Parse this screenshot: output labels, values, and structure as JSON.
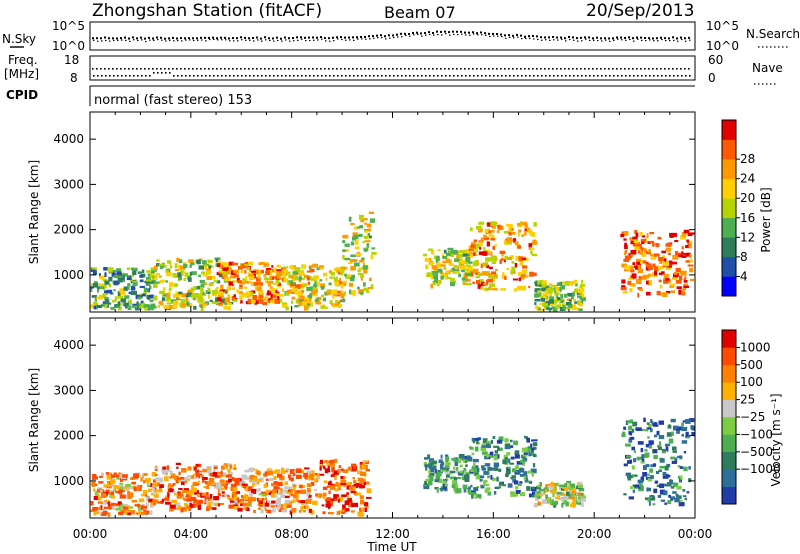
{
  "header": {
    "station": "Zhongshan Station (fitACF)",
    "beam": "Beam 07",
    "date": "20/Sep/2013"
  },
  "top_panels": {
    "nsky_label": "N.Sky",
    "nsky_ticks": [
      "10^5",
      "10^0"
    ],
    "nsearch_label": "N.Search",
    "nsearch_ticks": [
      "10^5",
      "10^0"
    ],
    "freq_label_1": "Freq.",
    "freq_label_2": "[MHz]",
    "freq_ticks": [
      "18",
      "8"
    ],
    "nave_label": "Nave",
    "nave_ticks": [
      "60",
      "0"
    ],
    "cpid_label": "CPID",
    "cpid_text": "normal (fast stereo) 153"
  },
  "time_axis": {
    "ticks": [
      "00:00",
      "04:00",
      "08:00",
      "12:00",
      "16:00",
      "20:00",
      "00:00"
    ],
    "label": "Time UT"
  },
  "chart_data": [
    {
      "type": "heatmap",
      "name": "power",
      "ylabel": "Slant Range [km]",
      "yticks": [
        "1000",
        "2000",
        "3000",
        "4000"
      ],
      "ylim": [
        180,
        4600
      ],
      "xlim_hours": [
        0,
        24
      ],
      "colorbar": {
        "label": "Power [dB]",
        "ticks": [
          "4",
          "8",
          "12",
          "16",
          "20",
          "24",
          "28"
        ],
        "colors": [
          "#0000ff",
          "#1f4fa8",
          "#2e7d5b",
          "#4caf50",
          "#b6d400",
          "#ffd000",
          "#ff9900",
          "#ff5a00",
          "#e00000"
        ]
      },
      "blobs": [
        {
          "t0": 0.0,
          "t1": 2.5,
          "r0": 250,
          "r1": 1200,
          "level": 0.35
        },
        {
          "t0": 2.5,
          "t1": 5.5,
          "r0": 300,
          "r1": 1400,
          "level": 0.5
        },
        {
          "t0": 5.0,
          "t1": 7.5,
          "r0": 400,
          "r1": 1300,
          "level": 0.75
        },
        {
          "t0": 7.5,
          "t1": 10.0,
          "r0": 300,
          "r1": 1250,
          "level": 0.6
        },
        {
          "t0": 10.0,
          "t1": 11.2,
          "r0": 600,
          "r1": 2400,
          "level": 0.55
        },
        {
          "t0": 13.2,
          "t1": 15.0,
          "r0": 800,
          "r1": 1600,
          "level": 0.55
        },
        {
          "t0": 15.0,
          "t1": 17.6,
          "r0": 700,
          "r1": 2200,
          "level": 0.7
        },
        {
          "t0": 17.6,
          "t1": 19.5,
          "r0": 250,
          "r1": 900,
          "level": 0.45
        },
        {
          "t0": 21.0,
          "t1": 24.0,
          "r0": 600,
          "r1": 2000,
          "level": 0.8
        }
      ]
    },
    {
      "type": "heatmap",
      "name": "velocity",
      "ylabel": "Slant Range [km]",
      "yticks": [
        "1000",
        "2000",
        "3000",
        "4000"
      ],
      "ylim": [
        180,
        4600
      ],
      "xlim_hours": [
        0,
        24
      ],
      "colorbar": {
        "label": "Velocity [m s⁻¹]",
        "ticks": [
          "1000",
          "500",
          "100",
          "25",
          "−25",
          "−100",
          "−500",
          "−1000"
        ],
        "colors": [
          "#1f3ca8",
          "#2e6f9a",
          "#2e7d5b",
          "#4caf50",
          "#7ccc44",
          "#c8c8c8",
          "#ffb000",
          "#ff8000",
          "#ff4a00",
          "#e00000"
        ]
      },
      "blobs": [
        {
          "t0": 0.0,
          "t1": 2.5,
          "r0": 300,
          "r1": 1200,
          "level": 0.7
        },
        {
          "t0": 2.5,
          "t1": 6.0,
          "r0": 400,
          "r1": 1400,
          "level": 0.75
        },
        {
          "t0": 6.0,
          "t1": 9.0,
          "r0": 350,
          "r1": 1300,
          "level": 0.72
        },
        {
          "t0": 9.0,
          "t1": 11.0,
          "r0": 300,
          "r1": 1500,
          "level": 0.85
        },
        {
          "t0": 13.2,
          "t1": 15.0,
          "r0": 800,
          "r1": 1600,
          "level": 0.3
        },
        {
          "t0": 15.0,
          "t1": 17.6,
          "r0": 700,
          "r1": 2000,
          "level": 0.25
        },
        {
          "t0": 17.6,
          "t1": 19.5,
          "r0": 500,
          "r1": 1000,
          "level": 0.5
        },
        {
          "t0": 21.0,
          "t1": 24.0,
          "r0": 500,
          "r1": 2400,
          "level": 0.2
        }
      ]
    }
  ]
}
